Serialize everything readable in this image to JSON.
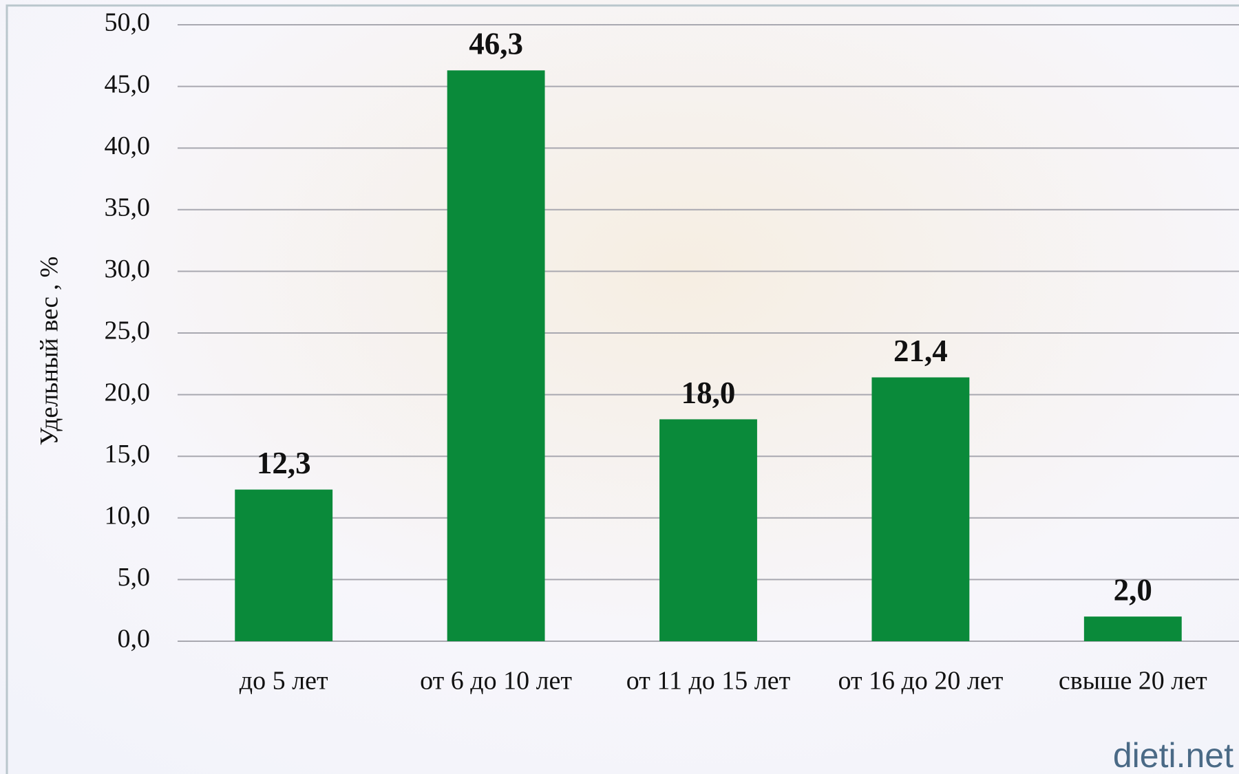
{
  "chart_data": {
    "type": "bar",
    "ylabel": "Удельный вес , %",
    "categories": [
      "до 5 лет",
      "от 6 до 10 лет",
      "от 11 до 15 лет",
      "от 16 до 20 лет",
      "свыше 20 лет"
    ],
    "values": [
      12.3,
      46.3,
      18.0,
      21.4,
      2.0
    ],
    "value_labels": [
      "12,3",
      "46,3",
      "18,0",
      "21,4",
      "2,0"
    ],
    "color": "#0a8a3a",
    "ylim": [
      0,
      50
    ],
    "yticks": [
      {
        "value": 0,
        "label": "0,0"
      },
      {
        "value": 5,
        "label": "5,0"
      },
      {
        "value": 10,
        "label": "10,0"
      },
      {
        "value": 15,
        "label": "15,0"
      },
      {
        "value": 20,
        "label": "20,0"
      },
      {
        "value": 25,
        "label": "25,0"
      },
      {
        "value": 30,
        "label": "30,0"
      },
      {
        "value": 35,
        "label": "35,0"
      },
      {
        "value": 40,
        "label": "40,0"
      },
      {
        "value": 45,
        "label": "45,0"
      },
      {
        "value": 50,
        "label": "50,0"
      }
    ],
    "grid": true,
    "watermark": "dieti.net"
  }
}
